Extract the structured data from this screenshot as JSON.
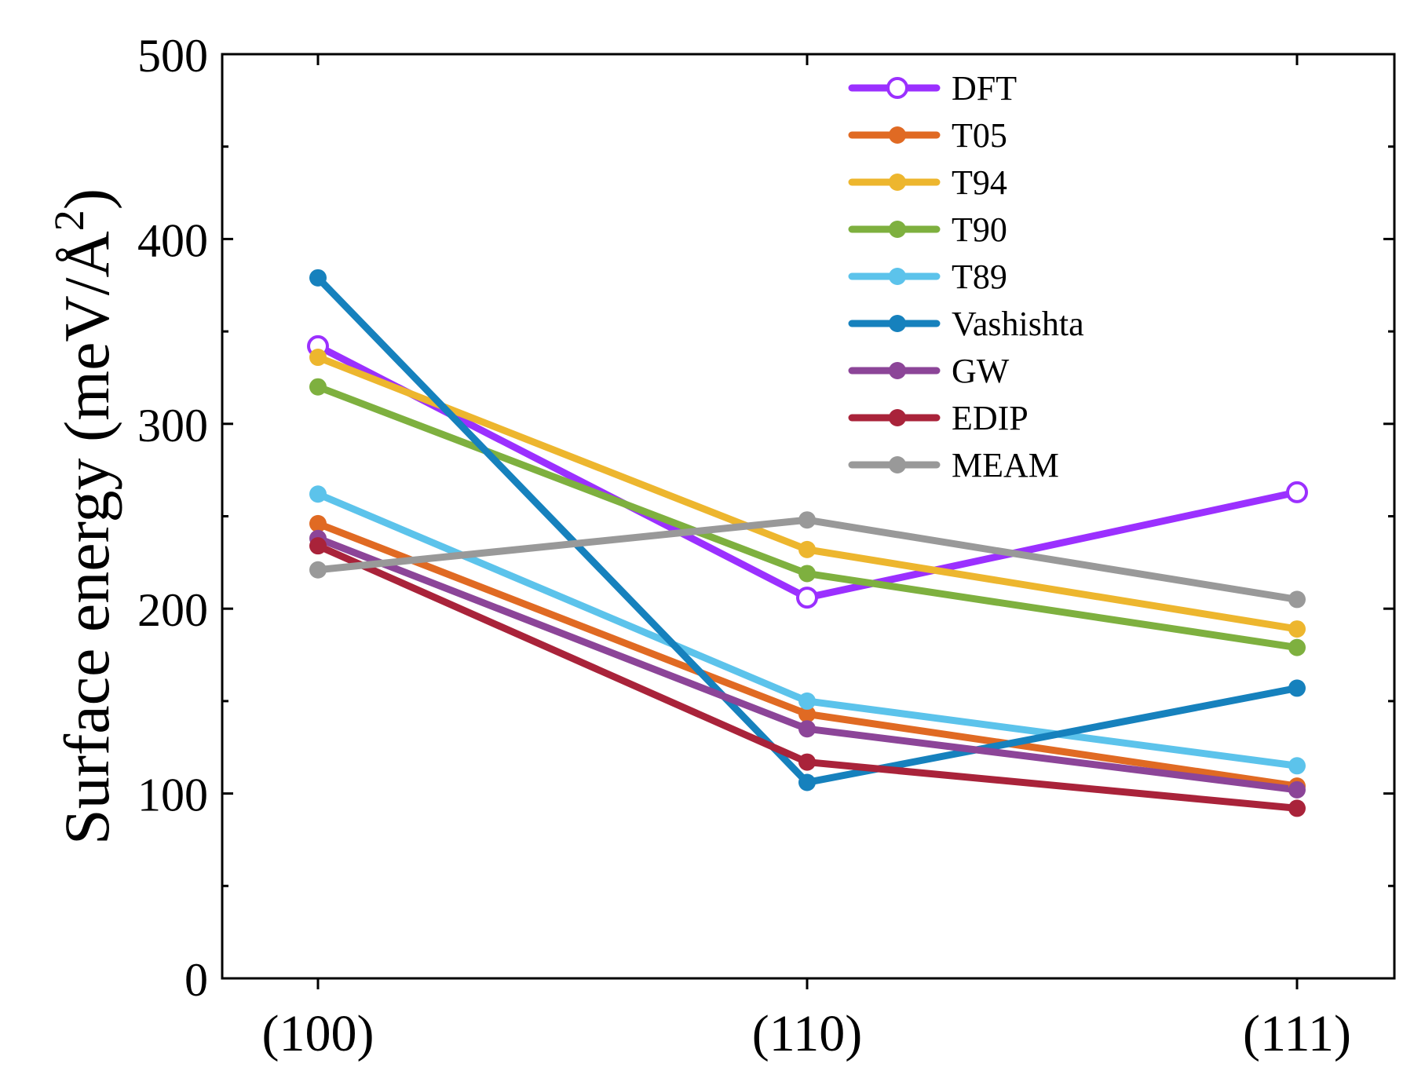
{
  "chart_data": {
    "type": "line",
    "title": "",
    "xlabel": "",
    "ylabel": "Surface energy (meV/Å²)",
    "ylabel_main": "Surface energy (meV/Å",
    "ylabel_sup": "2",
    "ylabel_close": ")",
    "categories": [
      "(100)",
      "(110)",
      "(111)"
    ],
    "ylim": [
      0,
      500
    ],
    "yticks": [
      0,
      100,
      200,
      300,
      400,
      500
    ],
    "ytick_labels": [
      "0",
      "100",
      "200",
      "300",
      "400",
      "500"
    ],
    "grid": false,
    "legend_position": "top-right",
    "series": [
      {
        "name": "DFT",
        "color": "#9B30FF",
        "marker": "open-circle",
        "values": [
          342,
          206,
          263
        ]
      },
      {
        "name": "T05",
        "color": "#E06A23",
        "marker": "filled-circle",
        "values": [
          246,
          143,
          104
        ]
      },
      {
        "name": "T94",
        "color": "#EDB62E",
        "marker": "filled-circle",
        "values": [
          336,
          232,
          189
        ]
      },
      {
        "name": "T90",
        "color": "#7EB03F",
        "marker": "filled-circle",
        "values": [
          320,
          219,
          179
        ]
      },
      {
        "name": "T89",
        "color": "#5CC3EB",
        "marker": "filled-circle",
        "values": [
          262,
          150,
          115
        ]
      },
      {
        "name": "Vashishta",
        "color": "#1681BD",
        "marker": "filled-circle",
        "values": [
          379,
          106,
          157
        ]
      },
      {
        "name": "GW",
        "color": "#8C4598",
        "marker": "filled-circle",
        "values": [
          238,
          135,
          102
        ]
      },
      {
        "name": "EDIP",
        "color": "#A9233A",
        "marker": "filled-circle",
        "values": [
          234,
          117,
          92
        ]
      },
      {
        "name": "MEAM",
        "color": "#999999",
        "marker": "filled-circle",
        "values": [
          221,
          248,
          205
        ]
      }
    ]
  }
}
